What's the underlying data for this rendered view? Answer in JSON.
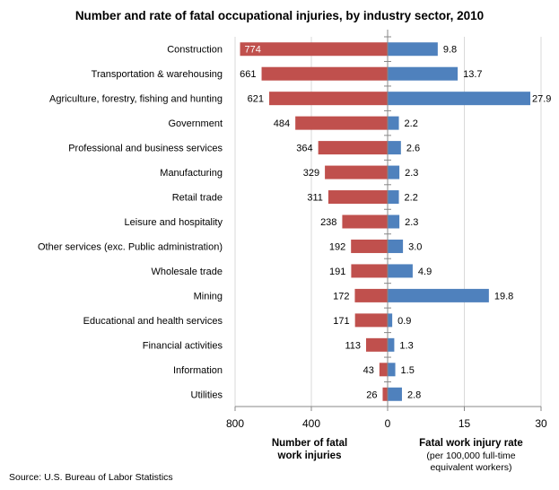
{
  "chart_data": {
    "type": "bar",
    "title": "Number and rate of fatal occupational injuries, by industry sector, 2010",
    "categories": [
      "Construction",
      "Transportation & warehousing",
      "Agriculture, forestry, fishing and hunting",
      "Government",
      "Professional and business services",
      "Manufacturing",
      "Retail trade",
      "Leisure and hospitality",
      "Other services (exc. Public administration)",
      "Wholesale trade",
      "Mining",
      "Educational and health services",
      "Financial activities",
      "Information",
      "Utilities"
    ],
    "series": [
      {
        "name": "Number of fatal work injuries",
        "values": [
          774,
          661,
          621,
          484,
          364,
          329,
          311,
          238,
          192,
          191,
          172,
          171,
          113,
          43,
          26
        ],
        "color": "#C0504D",
        "xlim": [
          800,
          0
        ],
        "ticks": [
          "800",
          "400",
          "0"
        ]
      },
      {
        "name": "Fatal work injury rate",
        "values": [
          9.8,
          13.7,
          27.9,
          2.2,
          2.6,
          2.3,
          2.2,
          2.3,
          3.0,
          4.9,
          19.8,
          0.9,
          1.3,
          1.5,
          2.8
        ],
        "color": "#4F81BD",
        "xlim": [
          0,
          30
        ],
        "ticks": [
          "15",
          "30"
        ]
      }
    ],
    "left_axis_label": "Number of fatal work injuries",
    "right_axis_label": "Fatal work injury rate",
    "right_axis_sublabel": "(per 100,000 full-time equivalent workers)",
    "grid": true,
    "source": "Source: U.S. Bureau of Labor Statistics"
  }
}
